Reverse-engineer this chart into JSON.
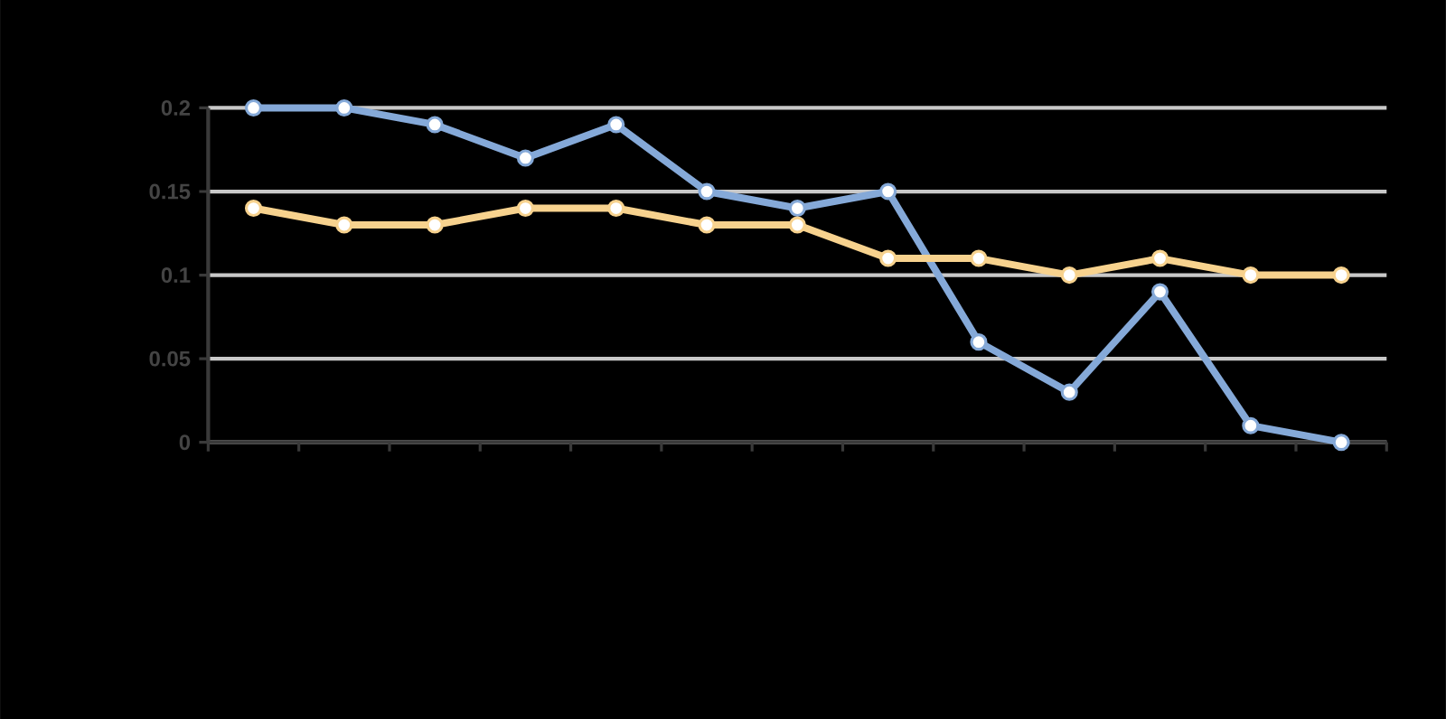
{
  "chart_data": {
    "type": "line",
    "categories": [
      null,
      null,
      null,
      null,
      null,
      null,
      null,
      null,
      null,
      null,
      null,
      null,
      null
    ],
    "series": [
      {
        "color": "#85a9d8",
        "values": [
          0.2,
          0.2,
          0.19,
          0.17,
          0.19,
          0.15,
          0.14,
          0.15,
          0.06,
          0.03,
          0.09,
          0.01,
          0
        ]
      },
      {
        "color": "#f7d28e",
        "values": [
          0.14,
          0.13,
          0.13,
          0.14,
          0.14,
          0.13,
          0.13,
          0.11,
          0.11,
          0.1,
          0.11,
          0.1,
          0.1
        ]
      }
    ],
    "ylim": [
      0,
      0.2
    ],
    "yticks": [
      0,
      0.05,
      0.1,
      0.15,
      0.2
    ],
    "grid": "y",
    "marker": "circle",
    "tick_labels": "y"
  }
}
